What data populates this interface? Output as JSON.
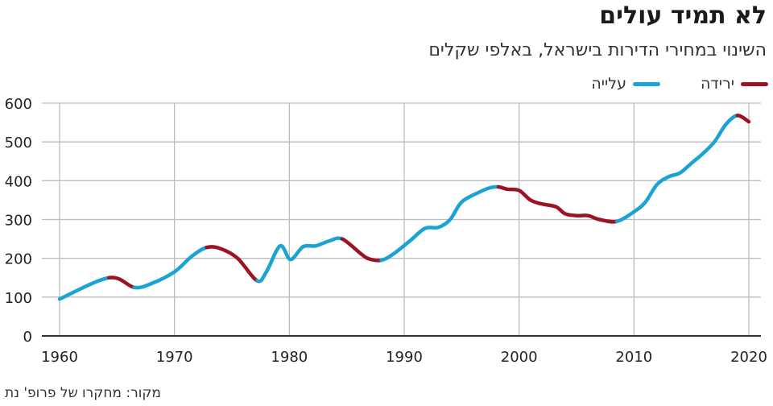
{
  "title": "לא תמיד עולים",
  "subtitle": "השינוי במחירי הדירות בישראל, באלפי שקלים",
  "source": "מקור: מחקרו של פרופ' נת",
  "legend": [
    {
      "label": "ירידה",
      "color": "#9b1423"
    },
    {
      "label": "עלייה",
      "color": "#1ba3d3"
    }
  ],
  "chart_data": {
    "type": "line",
    "title": "לא תמיד עולים",
    "subtitle": "השינוי במחירי הדירות בישראל, באלפי שקלים",
    "xlabel": "",
    "ylabel": "",
    "xlim": [
      1960,
      2020
    ],
    "ylim": [
      0,
      600
    ],
    "x_ticks": [
      1960,
      1970,
      1980,
      1990,
      2000,
      2010,
      2020
    ],
    "y_ticks": [
      0,
      100,
      200,
      300,
      400,
      500,
      600
    ],
    "grid": true,
    "legend_position": "top-right",
    "colors": {
      "up": "#1ba3d3",
      "down": "#9b1423"
    },
    "points": [
      [
        1960,
        95
      ],
      [
        1964.3,
        150
      ],
      [
        1966.5,
        125
      ],
      [
        1968,
        135
      ],
      [
        1970,
        165
      ],
      [
        1971.5,
        205
      ],
      [
        1972.8,
        228
      ],
      [
        1974,
        225
      ],
      [
        1975.5,
        200
      ],
      [
        1977.2,
        142
      ],
      [
        1978,
        165
      ],
      [
        1979.2,
        232
      ],
      [
        1980.1,
        197
      ],
      [
        1981.2,
        230
      ],
      [
        1982.3,
        232
      ],
      [
        1983.5,
        245
      ],
      [
        1984.6,
        250
      ],
      [
        1986.3,
        210
      ],
      [
        1987,
        198
      ],
      [
        1988,
        195
      ],
      [
        1989,
        210
      ],
      [
        1990.5,
        245
      ],
      [
        1991.8,
        277
      ],
      [
        1993,
        280
      ],
      [
        1994,
        300
      ],
      [
        1995,
        345
      ],
      [
        1996.5,
        370
      ],
      [
        1997.5,
        382
      ],
      [
        1998.2,
        384
      ],
      [
        1999,
        378
      ],
      [
        2000,
        375
      ],
      [
        2001,
        350
      ],
      [
        2002,
        340
      ],
      [
        2003.2,
        333
      ],
      [
        2004,
        315
      ],
      [
        2005,
        310
      ],
      [
        2006,
        310
      ],
      [
        2007,
        300
      ],
      [
        2008.5,
        295
      ],
      [
        2010,
        320
      ],
      [
        2011,
        345
      ],
      [
        2012,
        390
      ],
      [
        2013,
        410
      ],
      [
        2014,
        420
      ],
      [
        2015,
        445
      ],
      [
        2016,
        470
      ],
      [
        2017,
        500
      ],
      [
        2018,
        545
      ],
      [
        2019,
        568
      ],
      [
        2020,
        552
      ]
    ],
    "segments": [
      {
        "trend": "up",
        "from": 1960,
        "to": 1964.3
      },
      {
        "trend": "down",
        "from": 1964.3,
        "to": 1966.5
      },
      {
        "trend": "up",
        "from": 1966.5,
        "to": 1972.8
      },
      {
        "trend": "down",
        "from": 1972.8,
        "to": 1977.2
      },
      {
        "trend": "up",
        "from": 1977.2,
        "to": 1984.6
      },
      {
        "trend": "down",
        "from": 1984.6,
        "to": 1988
      },
      {
        "trend": "up",
        "from": 1988,
        "to": 1998.2
      },
      {
        "trend": "down",
        "from": 1998.2,
        "to": 2008.5
      },
      {
        "trend": "up",
        "from": 2008.5,
        "to": 2019
      },
      {
        "trend": "down",
        "from": 2019,
        "to": 2020
      }
    ]
  }
}
